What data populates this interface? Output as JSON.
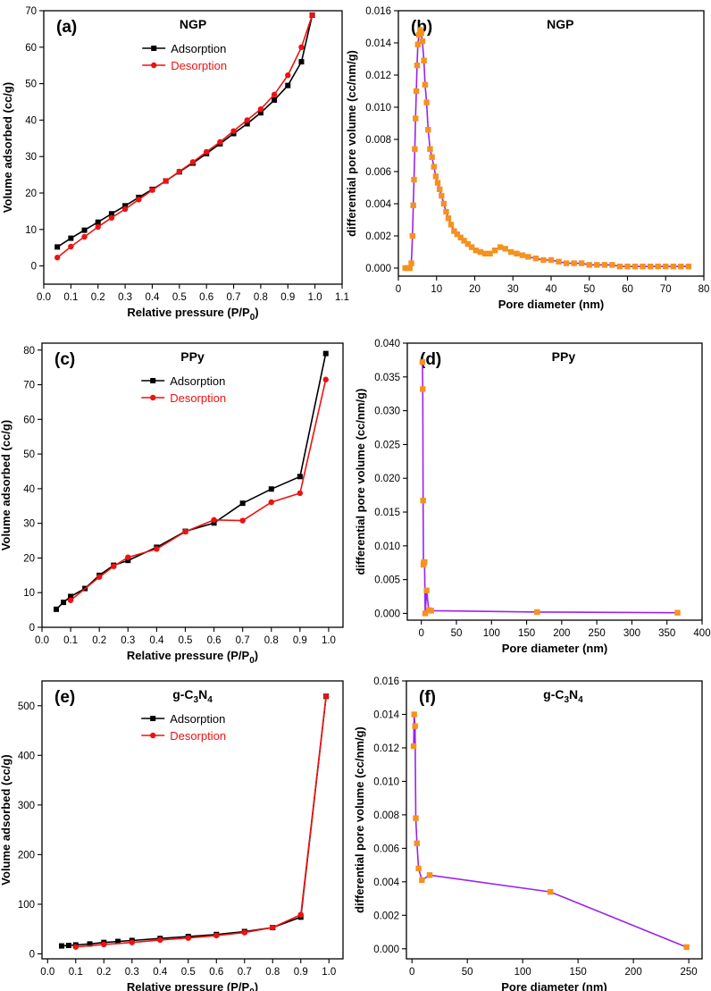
{
  "colors": {
    "adsorption": "#000000",
    "desorption": "#ee1111",
    "psd_line": "#9a22ee",
    "psd_marker": "#f5921e"
  },
  "chart_data": [
    {
      "id": "a",
      "type": "line",
      "letter": "(a)",
      "title": "NGP",
      "xlabel_main": "Relative pressure (P/P",
      "xlabel_sub": "0",
      "xlabel_end": ")",
      "ylabel": "Volume adsorbed (cc/g)",
      "xlim": [
        0.0,
        1.1
      ],
      "ylim": [
        -5,
        70
      ],
      "xticks": [
        0.0,
        0.1,
        0.2,
        0.3,
        0.4,
        0.5,
        0.6,
        0.7,
        0.8,
        0.9,
        1.0,
        1.1
      ],
      "xtick_labels": [
        "0.0",
        "0.1",
        "0.2",
        "0.3",
        "0.4",
        "0.5",
        "0.6",
        "0.7",
        "0.8",
        "0.9",
        "1.0",
        "1.1"
      ],
      "yticks": [
        0,
        10,
        20,
        30,
        40,
        50,
        60,
        70
      ],
      "ytick_labels": [
        "0",
        "10",
        "20",
        "30",
        "40",
        "50",
        "60",
        "70"
      ],
      "legend": [
        "Adsorption",
        "Desorption"
      ],
      "series": [
        {
          "name": "Adsorption",
          "x": [
            0.05,
            0.1,
            0.15,
            0.2,
            0.25,
            0.3,
            0.35,
            0.4,
            0.45,
            0.5,
            0.55,
            0.6,
            0.65,
            0.7,
            0.75,
            0.8,
            0.85,
            0.9,
            0.95,
            0.99
          ],
          "y": [
            5.2,
            7.6,
            9.8,
            12.0,
            14.3,
            16.5,
            18.8,
            21.0,
            23.3,
            25.8,
            28.2,
            30.8,
            33.5,
            36.3,
            39.0,
            42.0,
            45.5,
            49.5,
            56.0,
            68.8
          ]
        },
        {
          "name": "Desorption",
          "x": [
            0.05,
            0.1,
            0.15,
            0.2,
            0.25,
            0.3,
            0.35,
            0.4,
            0.45,
            0.5,
            0.55,
            0.6,
            0.65,
            0.7,
            0.75,
            0.8,
            0.85,
            0.9,
            0.95,
            0.99
          ],
          "y": [
            2.3,
            5.3,
            8.0,
            10.7,
            13.2,
            15.6,
            18.2,
            20.8,
            23.3,
            25.9,
            28.5,
            31.3,
            34.0,
            37.0,
            40.0,
            43.0,
            47.0,
            52.3,
            60.0,
            68.8
          ]
        }
      ]
    },
    {
      "id": "b",
      "type": "line",
      "letter": "(b)",
      "title": "NGP",
      "xlabel": "Pore diameter (nm)",
      "ylabel": "differential pore volume (cc/nm/g)",
      "xlim": [
        0,
        80
      ],
      "ylim": [
        -0.0005,
        0.016
      ],
      "xticks": [
        0,
        10,
        20,
        30,
        40,
        50,
        60,
        70,
        80
      ],
      "xtick_labels": [
        "0",
        "10",
        "20",
        "30",
        "40",
        "50",
        "60",
        "70",
        "80"
      ],
      "yticks": [
        0,
        0.002,
        0.004,
        0.006,
        0.008,
        0.01,
        0.012,
        0.014,
        0.016
      ],
      "ytick_labels": [
        "0.000",
        "0.002",
        "0.004",
        "0.006",
        "0.008",
        "0.010",
        "0.012",
        "0.014",
        "0.016"
      ],
      "series": [
        {
          "name": "PSD",
          "x": [
            1.8,
            2.4,
            3.0,
            3.4,
            3.7,
            3.9,
            4.1,
            4.3,
            4.5,
            4.7,
            4.9,
            5.1,
            5.4,
            5.7,
            6.0,
            6.3,
            6.7,
            7.0,
            7.4,
            7.8,
            8.3,
            8.8,
            9.3,
            9.8,
            10.3,
            10.8,
            11.3,
            11.9,
            12.5,
            13.1,
            13.8,
            14.6,
            15.4,
            16.3,
            17.2,
            18.2,
            19.2,
            20.3,
            21.5,
            22.7,
            24.0,
            25.3,
            26.7,
            28.0,
            29.5,
            31.0,
            32.5,
            34.0,
            36.0,
            38.0,
            40.0,
            42.0,
            44.0,
            46.0,
            48.0,
            50.0,
            52.0,
            54.0,
            56.0,
            58.0,
            60.0,
            62.0,
            64.0,
            66.0,
            68.0,
            70.0,
            72.0,
            74.0,
            76.0
          ],
          "y": [
            0.0,
            0.0,
            0.0,
            0.0003,
            0.002,
            0.0039,
            0.0055,
            0.0074,
            0.0093,
            0.011,
            0.0126,
            0.0139,
            0.0145,
            0.0148,
            0.0146,
            0.0141,
            0.0129,
            0.0114,
            0.0103,
            0.0086,
            0.0074,
            0.0069,
            0.0063,
            0.0057,
            0.0053,
            0.0049,
            0.0045,
            0.004,
            0.0035,
            0.0031,
            0.0027,
            0.0023,
            0.0021,
            0.0019,
            0.0017,
            0.0015,
            0.0013,
            0.0011,
            0.001,
            0.0009,
            0.0009,
            0.0011,
            0.0013,
            0.0012,
            0.001,
            0.0009,
            0.0008,
            0.0007,
            0.0006,
            0.0005,
            0.0005,
            0.0004,
            0.0003,
            0.0003,
            0.0003,
            0.0002,
            0.0002,
            0.0002,
            0.0002,
            0.0001,
            0.0001,
            0.0001,
            0.0001,
            0.0001,
            0.0001,
            0.0001,
            0.0001,
            0.0001,
            0.0001
          ]
        }
      ]
    },
    {
      "id": "c",
      "type": "line",
      "letter": "(c)",
      "title": "PPy",
      "xlabel_main": "Relative pressure (P/P",
      "xlabel_sub": "0",
      "xlabel_end": ")",
      "ylabel": "Volume adsorbed (cc/g)",
      "xlim": [
        0.0,
        1.05
      ],
      "ylim": [
        0,
        82
      ],
      "xticks": [
        0.0,
        0.1,
        0.2,
        0.3,
        0.4,
        0.5,
        0.6,
        0.7,
        0.8,
        0.9,
        1.0
      ],
      "xtick_labels": [
        "0.0",
        "0.1",
        "0.2",
        "0.3",
        "0.4",
        "0.5",
        "0.6",
        "0.7",
        "0.8",
        "0.9",
        "1.0"
      ],
      "yticks": [
        0,
        10,
        20,
        30,
        40,
        50,
        60,
        70,
        80
      ],
      "ytick_labels": [
        "0",
        "10",
        "20",
        "30",
        "40",
        "50",
        "60",
        "70",
        "80"
      ],
      "legend": [
        "Adsorption",
        "Desorption"
      ],
      "series": [
        {
          "name": "Adsorption",
          "x": [
            0.05,
            0.075,
            0.1,
            0.15,
            0.2,
            0.25,
            0.3,
            0.4,
            0.5,
            0.6,
            0.7,
            0.8,
            0.9,
            0.99
          ],
          "y": [
            5.2,
            7.2,
            8.9,
            11.2,
            15.0,
            17.9,
            19.3,
            23.1,
            27.7,
            30.1,
            35.8,
            39.9,
            43.5,
            79.0
          ]
        },
        {
          "name": "Desorption",
          "x": [
            0.1,
            0.2,
            0.25,
            0.3,
            0.4,
            0.5,
            0.6,
            0.7,
            0.8,
            0.9,
            0.99
          ],
          "y": [
            7.8,
            14.5,
            17.6,
            20.2,
            22.6,
            27.6,
            31.0,
            30.8,
            36.1,
            38.7,
            71.5
          ]
        }
      ]
    },
    {
      "id": "d",
      "type": "line",
      "letter": "(d)",
      "title": "PPy",
      "xlabel": "Pore diameter (nm)",
      "ylabel": "differential pore volume (cc/nm/g)",
      "xlim": [
        -20,
        400
      ],
      "ylim": [
        -0.001,
        0.04
      ],
      "xticks": [
        0,
        50,
        100,
        150,
        200,
        250,
        300,
        350,
        400
      ],
      "xtick_labels": [
        "0",
        "50",
        "100",
        "150",
        "200",
        "250",
        "300",
        "350",
        "400"
      ],
      "yticks": [
        0,
        0.005,
        0.01,
        0.015,
        0.02,
        0.025,
        0.03,
        0.035,
        0.04
      ],
      "ytick_labels": [
        "0.000",
        "0.005",
        "0.010",
        "0.015",
        "0.020",
        "0.025",
        "0.030",
        "0.035",
        "0.040"
      ],
      "series": [
        {
          "name": "PSD",
          "x": [
            1.5,
            2.0,
            2.5,
            3.0,
            3.5,
            4.5,
            5.5,
            7.5,
            10.5,
            14.0,
            165.0,
            365.0
          ],
          "y": [
            0.0372,
            0.0332,
            0.0167,
            0.0072,
            0.0075,
            0.0076,
            0.0,
            0.0034,
            0.0005,
            0.0004,
            0.0002,
            0.0001
          ]
        }
      ]
    },
    {
      "id": "e",
      "type": "line",
      "letter": "(e)",
      "title_main": "g-C",
      "title_sub1": "3",
      "title_mid": "N",
      "title_sub2": "4",
      "xlabel_main": "Relative pressure (P/P",
      "xlabel_sub": "0",
      "xlabel_end": ")",
      "ylabel": "Volume adsorbed (cc/g)",
      "xlim": [
        -0.02,
        1.05
      ],
      "ylim": [
        -10,
        550
      ],
      "xticks": [
        0.0,
        0.1,
        0.2,
        0.3,
        0.4,
        0.5,
        0.6,
        0.7,
        0.8,
        0.9,
        1.0
      ],
      "xtick_labels": [
        "0.0",
        "0.1",
        "0.2",
        "0.3",
        "0.4",
        "0.5",
        "0.6",
        "0.7",
        "0.8",
        "0.9",
        "1.0"
      ],
      "yticks": [
        0,
        100,
        200,
        300,
        400,
        500
      ],
      "ytick_labels": [
        "0",
        "100",
        "200",
        "300",
        "400",
        "500"
      ],
      "legend": [
        "Adsorption",
        "Desorption"
      ],
      "series": [
        {
          "name": "Adsorption",
          "x": [
            0.05,
            0.075,
            0.1,
            0.15,
            0.2,
            0.25,
            0.3,
            0.4,
            0.5,
            0.6,
            0.7,
            0.8,
            0.9,
            0.99
          ],
          "y": [
            16,
            17,
            18,
            20,
            23,
            25,
            27,
            31,
            35,
            39,
            45,
            53,
            74,
            519
          ]
        },
        {
          "name": "Desorption",
          "x": [
            0.1,
            0.2,
            0.3,
            0.4,
            0.5,
            0.6,
            0.7,
            0.8,
            0.9,
            0.99
          ],
          "y": [
            14,
            19,
            23,
            28,
            32,
            37,
            43,
            53,
            79,
            519
          ]
        }
      ]
    },
    {
      "id": "f",
      "type": "line",
      "letter": "(f)",
      "title_main": "g-C",
      "title_sub1": "3",
      "title_mid": "N",
      "title_sub2": "4",
      "xlabel": "Pore diameter (nm)",
      "ylabel": "differential pore volume (cc/nm/g)",
      "xlim": [
        -5,
        262
      ],
      "ylim": [
        -0.0006,
        0.016
      ],
      "xticks": [
        0,
        50,
        100,
        150,
        200,
        250
      ],
      "xtick_labels": [
        "0",
        "50",
        "100",
        "150",
        "200",
        "250"
      ],
      "yticks": [
        0,
        0.002,
        0.004,
        0.006,
        0.008,
        0.01,
        0.012,
        0.014,
        0.016
      ],
      "ytick_labels": [
        "0.000",
        "0.002",
        "0.004",
        "0.006",
        "0.008",
        "0.010",
        "0.012",
        "0.014",
        "0.016"
      ],
      "series": [
        {
          "name": "PSD",
          "x": [
            1.5,
            2.0,
            2.8,
            3.5,
            4.5,
            6.0,
            9.0,
            16.0,
            125.0,
            248.0
          ],
          "y": [
            0.0121,
            0.014,
            0.0133,
            0.0078,
            0.0063,
            0.0048,
            0.0041,
            0.0044,
            0.0034,
            0.0001
          ]
        }
      ]
    }
  ]
}
